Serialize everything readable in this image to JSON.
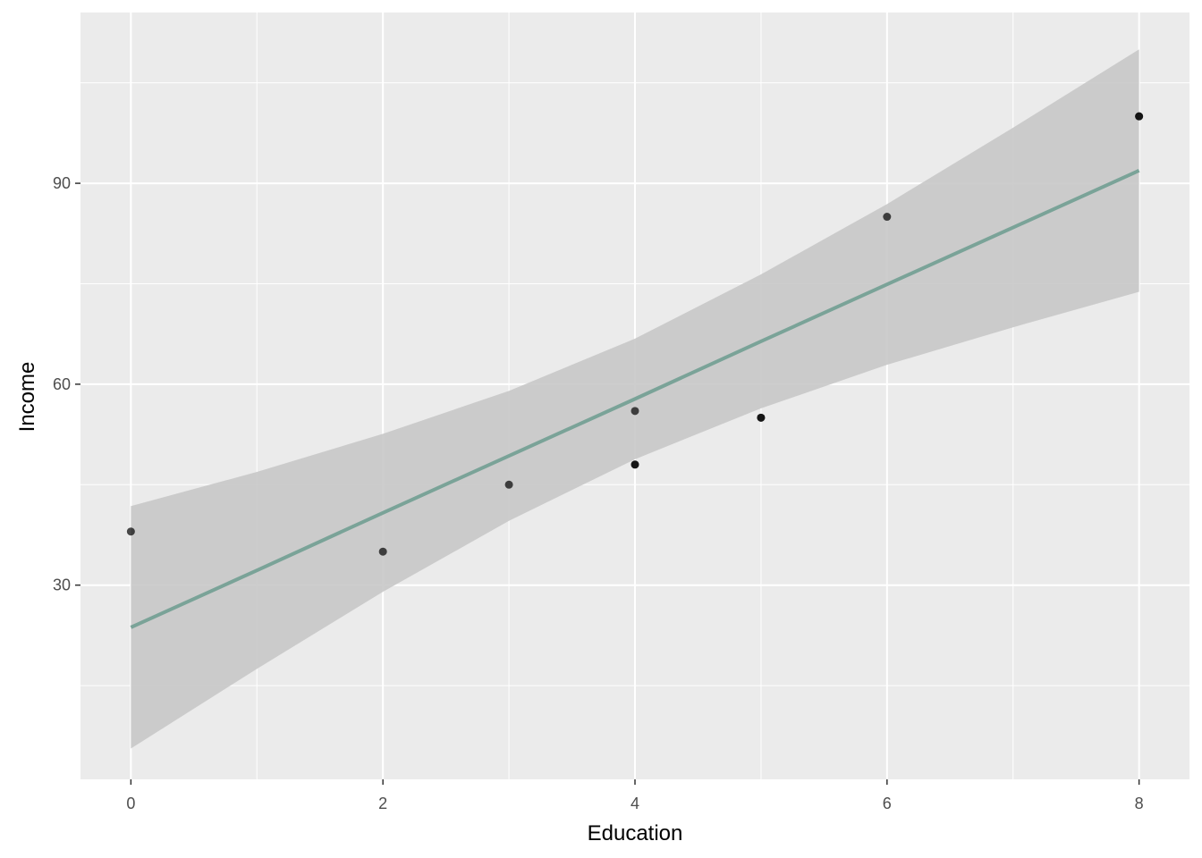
{
  "chart_data": {
    "type": "scatter",
    "xlabel": "Education",
    "ylabel": "Income",
    "xlim": [
      -0.4,
      8.4
    ],
    "ylim": [
      1.0,
      115.5
    ],
    "x_ticks": [
      0,
      2,
      4,
      6,
      8
    ],
    "y_ticks": [
      30,
      60,
      90
    ],
    "x_minor": [
      1,
      3,
      5,
      7
    ],
    "y_minor": [
      15,
      45,
      75,
      105
    ],
    "grid": true,
    "legend": "none",
    "series": [
      {
        "type": "scatter",
        "points": [
          {
            "x": 0,
            "y": 38
          },
          {
            "x": 2,
            "y": 35
          },
          {
            "x": 3,
            "y": 45
          },
          {
            "x": 4,
            "y": 48
          },
          {
            "x": 4,
            "y": 48
          },
          {
            "x": 4,
            "y": 56
          },
          {
            "x": 5,
            "y": 55
          },
          {
            "x": 5,
            "y": 55
          },
          {
            "x": 6,
            "y": 85
          },
          {
            "x": 8,
            "y": 100
          },
          {
            "x": 8,
            "y": 100
          }
        ]
      }
    ],
    "fit": {
      "type": "linear",
      "x": [
        0,
        1,
        2,
        3,
        4,
        5,
        6,
        7,
        8
      ],
      "y": [
        23.7,
        32.2,
        40.8,
        49.3,
        57.8,
        66.4,
        74.9,
        83.4,
        91.9
      ],
      "ci_lower": [
        5.6,
        17.5,
        29.0,
        39.6,
        48.8,
        56.4,
        62.9,
        68.5,
        73.8
      ],
      "ci_upper": [
        41.8,
        46.9,
        52.6,
        59.0,
        66.8,
        76.4,
        86.9,
        98.3,
        110.0
      ]
    },
    "colors": {
      "panel": "#ebebeb",
      "grid": "#ffffff",
      "point": "#000000",
      "line": "#7aa398",
      "ribbon": "#c8c8c8"
    }
  }
}
